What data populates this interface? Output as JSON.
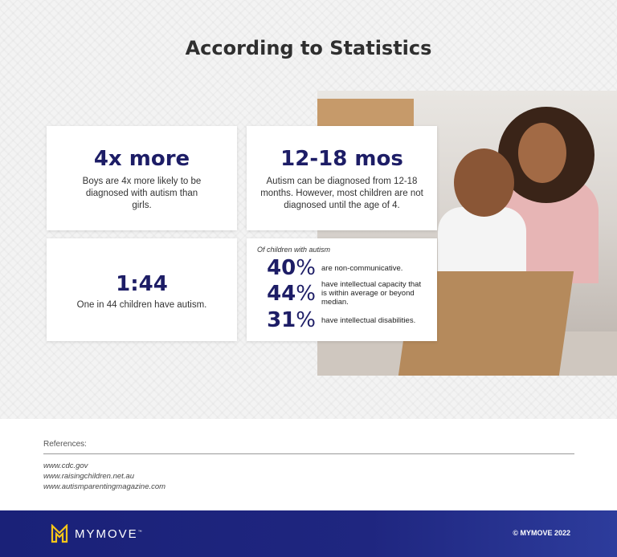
{
  "title": "According to Statistics",
  "stats": [
    {
      "value": "4x more",
      "text": "Boys are 4x more likely to be diagnosed with autism than girls."
    },
    {
      "value": "12-18 mos",
      "text": "Autism can be diagnosed from 12-18 months. However, most children are not diagnosed until the age of 4."
    },
    {
      "value": "1:44",
      "text": "One in 44 children have autism."
    }
  ],
  "autism_card": {
    "heading": "Of children with autism",
    "rows": [
      {
        "num": "40",
        "pct": "%",
        "text": "are non-communicative."
      },
      {
        "num": "44",
        "pct": "%",
        "text": "have intellectual capacity that is within average or beyond median."
      },
      {
        "num": "31",
        "pct": "%",
        "text": "have intellectual disabilities."
      }
    ]
  },
  "references": {
    "label": "References:",
    "links": [
      "www.cdc.gov",
      "www.raisingchildren.net.au",
      "www.autismparentingmagazine.com"
    ]
  },
  "footer": {
    "brand": "MYMOVE",
    "tm": "™",
    "copyright": "© MYMOVE 2022",
    "logo_color": "#f5c518",
    "bg_color": "#1a2178"
  },
  "accent_color": "#1d1d66"
}
